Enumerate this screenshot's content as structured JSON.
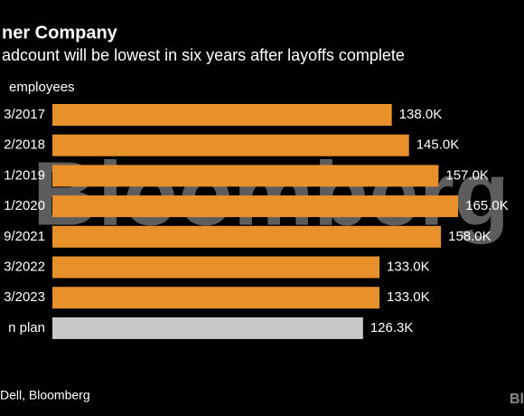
{
  "chart_data": {
    "type": "bar",
    "orientation": "horizontal",
    "title": "ner Company",
    "subtitle": "adcount will be lowest in six years after layoffs complete",
    "unit_label": "employees",
    "categories": [
      "3/2017",
      "2/2018",
      "1/2019",
      "1/2020",
      "9/2021",
      "3/2022",
      "3/2023",
      "n plan"
    ],
    "values": [
      138,
      145,
      157,
      165,
      158,
      133,
      133,
      126.3
    ],
    "value_labels": [
      "138.0K",
      "145.0K",
      "157.0K",
      "165.0K",
      "158.0K",
      "133.0K",
      "133.0K",
      "126.3K"
    ],
    "colors": [
      "#e8902a",
      "#e8902a",
      "#e8902a",
      "#e8902a",
      "#e8902a",
      "#e8902a",
      "#e8902a",
      "#c8c8c8"
    ],
    "xlim": [
      0,
      180
    ],
    "source": "Dell, Bloomberg",
    "watermark": "Bloomberg",
    "logo": "Bl"
  }
}
